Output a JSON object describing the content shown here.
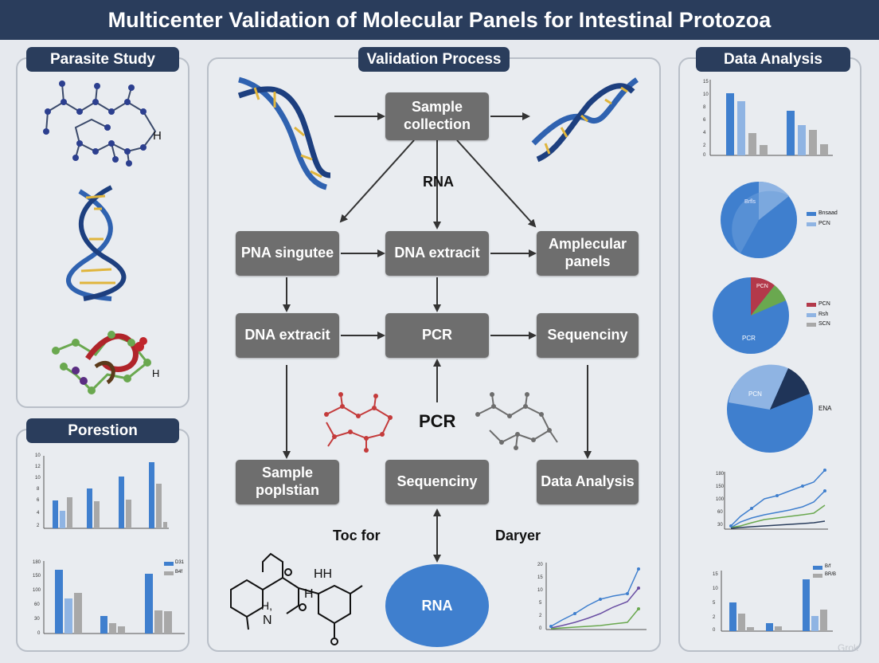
{
  "title": "Multicenter Validation of Molecular Panels for Intestinal Protozoa",
  "sections": {
    "parasite_study": "Parasite Study",
    "validation_process": "Validation Process",
    "data_analysis": "Data Analysis",
    "porestion": "Porestion"
  },
  "flow": {
    "sample_collection": "Sample collection",
    "rna_label": "RNA",
    "pna_singutee": "PNA singutee",
    "dna_extracit_top": "DNA extracit",
    "amplecular_panels": "Amplecular panels",
    "dna_extracit_left": "DNA extracit",
    "pcr_node": "PCR",
    "sequenciny_right": "Sequenciny",
    "pcr_label": "PCR",
    "sample_poplstian": "Sample poplstian",
    "sequenciny_bottom": "Sequenciny",
    "data_analysis_node": "Data Analysis",
    "toc_for": "Toc for",
    "daryer": "Daryer",
    "rna_ellipse": "RNA"
  },
  "molecule_letters": {
    "h_top": "H",
    "h_bottom": "H",
    "hh": "HH",
    "h_lower": "H",
    "n": "N",
    "hj": "H,"
  },
  "chart_labels": {
    "pie1_a": "Bnsaad",
    "pie1_b": "PCN",
    "pie1_inner": "Brfls",
    "pie2_a": "PCN",
    "pie2_b": "Rsh",
    "pie2_c": "SCN",
    "pie2_inner_top": "PCN",
    "pie2_inner": "PCR",
    "pie3_inner": "PCN",
    "pie3_side": "ENA",
    "left_bar2_leg1": "D31",
    "left_bar2_leg2": "B4f",
    "right_bar2_leg1": "B/f",
    "right_bar2_leg2": "BR/B"
  },
  "watermark": "Grok",
  "colors": {
    "navy": "#2a3d5c",
    "node_gray": "#6e6e6e",
    "blue": "#3f7fce",
    "light_blue": "#8fb4e3",
    "gray_bar": "#a8a8a8",
    "green": "#6aa84f",
    "red": "#b3394a"
  }
}
